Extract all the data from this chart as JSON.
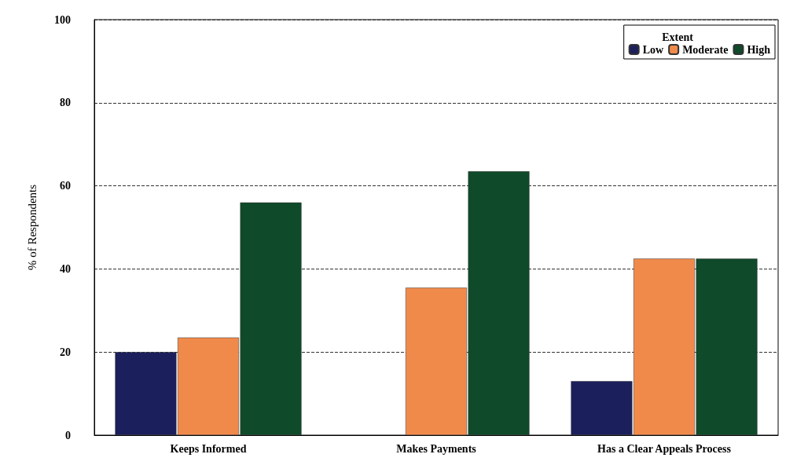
{
  "chart_data": {
    "type": "bar",
    "ylabel": "% of Respondents",
    "legend_title": "Extent",
    "categories": [
      "Keeps Informed",
      "Makes Payments",
      "Has a Clear Appeals Process"
    ],
    "series": [
      {
        "name": "Low",
        "color": "#1b1f5c",
        "values": [
          20,
          null,
          13
        ]
      },
      {
        "name": "Moderate",
        "color": "#f08a4b",
        "values": [
          23.5,
          35.5,
          42.5
        ]
      },
      {
        "name": "High",
        "color": "#0f4a2a",
        "values": [
          56,
          63.5,
          42.5
        ]
      }
    ],
    "ylim": [
      0,
      100
    ],
    "yticks": [
      0,
      20,
      40,
      60,
      80,
      100
    ],
    "grid": "y",
    "legend": "top right"
  }
}
